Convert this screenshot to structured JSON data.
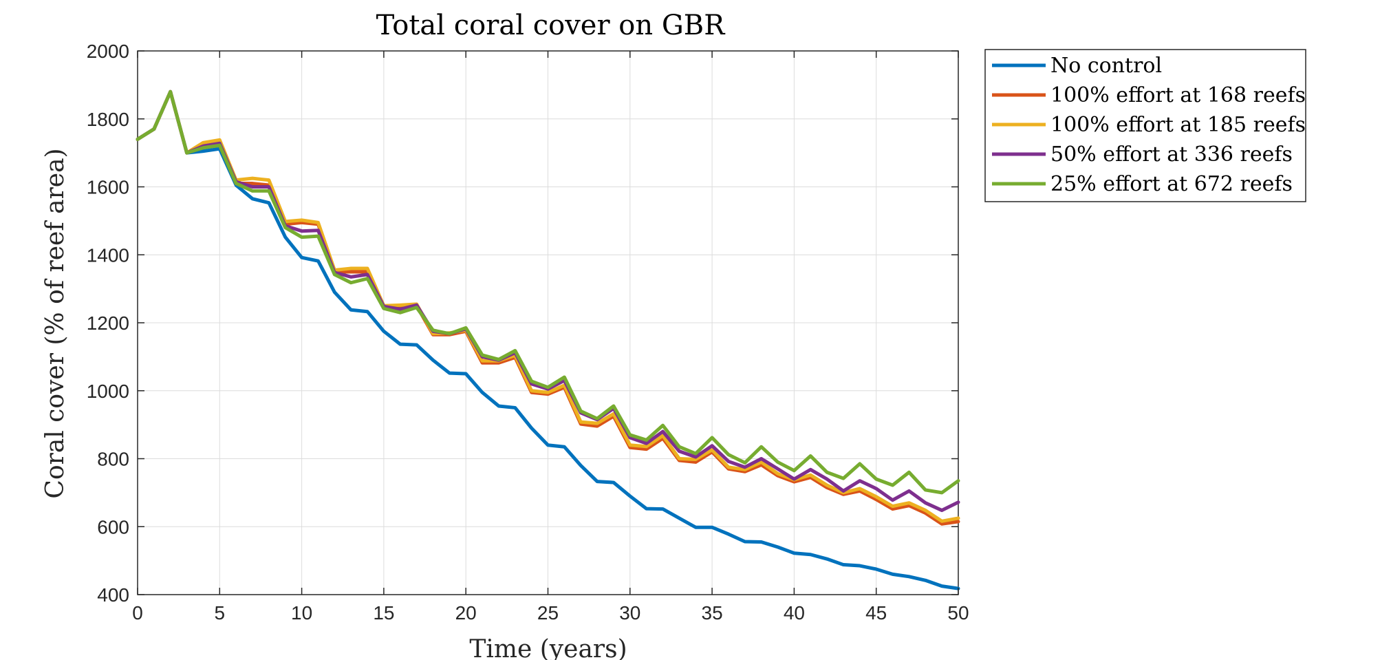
{
  "chart_data": {
    "type": "line",
    "title": "Total coral cover on GBR",
    "xlabel": "Time (years)",
    "ylabel": "Coral cover (% of reef area)",
    "xlim": [
      0,
      50
    ],
    "ylim": [
      400,
      2000
    ],
    "xticks": [
      0,
      5,
      10,
      15,
      20,
      25,
      30,
      35,
      40,
      45,
      50
    ],
    "yticks": [
      400,
      600,
      800,
      1000,
      1200,
      1400,
      1600,
      1800,
      2000
    ],
    "grid": true,
    "legend_position": "outside-top-right",
    "x": [
      0,
      1,
      2,
      3,
      4,
      5,
      6,
      7,
      8,
      9,
      10,
      11,
      12,
      13,
      14,
      15,
      16,
      17,
      18,
      19,
      20,
      21,
      22,
      23,
      24,
      25,
      26,
      27,
      28,
      29,
      30,
      31,
      32,
      33,
      34,
      35,
      36,
      37,
      38,
      39,
      40,
      41,
      42,
      43,
      44,
      45,
      46,
      47,
      48,
      49,
      50
    ],
    "series": [
      {
        "name": "No control",
        "color": "#0072BD",
        "values": [
          1740,
          1770,
          1880,
          1700,
          1705,
          1712,
          1605,
          1565,
          1553,
          1452,
          1392,
          1382,
          1290,
          1238,
          1233,
          1175,
          1137,
          1135,
          1090,
          1052,
          1050,
          995,
          955,
          950,
          890,
          840,
          835,
          780,
          733,
          730,
          690,
          653,
          652,
          625,
          598,
          598,
          578,
          556,
          555,
          540,
          522,
          518,
          505,
          488,
          485,
          475,
          460,
          453,
          442,
          425,
          418
        ]
      },
      {
        "name": "100% effort at 168 reefs",
        "color": "#D95319",
        "values": [
          1740,
          1770,
          1880,
          1700,
          1725,
          1735,
          1610,
          1610,
          1605,
          1490,
          1495,
          1490,
          1350,
          1350,
          1350,
          1245,
          1245,
          1250,
          1165,
          1165,
          1175,
          1082,
          1082,
          1098,
          995,
          990,
          1010,
          902,
          896,
          925,
          833,
          828,
          860,
          795,
          790,
          820,
          770,
          762,
          782,
          750,
          732,
          745,
          715,
          695,
          705,
          680,
          652,
          662,
          640,
          608,
          615
        ]
      },
      {
        "name": "100% effort at 185 reefs",
        "color": "#EDB120",
        "values": [
          1740,
          1770,
          1880,
          1700,
          1730,
          1738,
          1620,
          1625,
          1620,
          1498,
          1502,
          1495,
          1355,
          1360,
          1360,
          1250,
          1252,
          1255,
          1168,
          1170,
          1178,
          1088,
          1088,
          1104,
          1000,
          995,
          1016,
          908,
          904,
          932,
          840,
          836,
          868,
          800,
          798,
          826,
          775,
          768,
          790,
          756,
          738,
          752,
          722,
          700,
          712,
          688,
          660,
          670,
          648,
          616,
          625
        ]
      },
      {
        "name": "50% effort at 336 reefs",
        "color": "#7E2F8E",
        "values": [
          1740,
          1770,
          1880,
          1700,
          1720,
          1728,
          1615,
          1600,
          1600,
          1485,
          1470,
          1472,
          1348,
          1335,
          1342,
          1248,
          1240,
          1252,
          1175,
          1168,
          1182,
          1100,
          1090,
          1112,
          1020,
          1005,
          1030,
          935,
          915,
          948,
          862,
          845,
          880,
          822,
          805,
          838,
          792,
          775,
          800,
          770,
          740,
          768,
          740,
          705,
          735,
          712,
          678,
          705,
          670,
          648,
          672
        ]
      },
      {
        "name": "25% effort at 672 reefs",
        "color": "#77AC30",
        "values": [
          1740,
          1770,
          1880,
          1700,
          1715,
          1722,
          1610,
          1588,
          1588,
          1480,
          1452,
          1455,
          1342,
          1318,
          1330,
          1242,
          1230,
          1245,
          1178,
          1168,
          1185,
          1105,
          1092,
          1118,
          1028,
          1010,
          1040,
          940,
          918,
          955,
          870,
          855,
          898,
          835,
          815,
          862,
          812,
          788,
          835,
          790,
          765,
          808,
          760,
          742,
          785,
          740,
          722,
          760,
          708,
          700,
          735
        ]
      }
    ]
  }
}
